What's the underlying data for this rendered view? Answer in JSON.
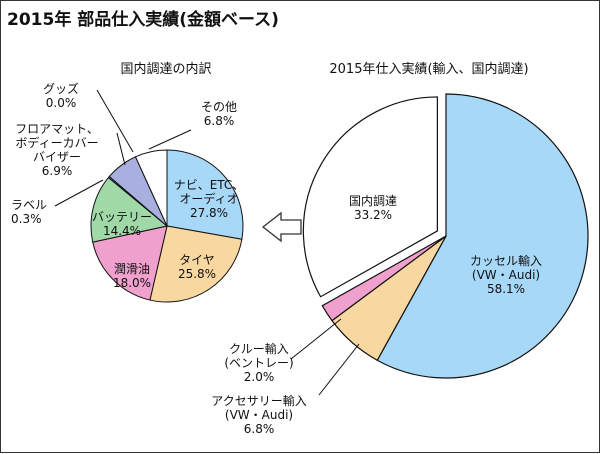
{
  "title": "2015年 部品仕入実績(金額ベース)",
  "colors": {
    "etc": "#a8d8f8",
    "tire": "#f8d8a0",
    "lube": "#f0a0cc",
    "battery": "#a0d8a8",
    "labels": "#a8b0e0",
    "floormat": "#202020",
    "accessory": "#f8d8a0",
    "crew": "#f0a0cc",
    "domestic": "#ffffff",
    "cassel": "#a8d8f8"
  },
  "chart_data": [
    {
      "type": "pie",
      "title": "国内調達の内訳",
      "slices": [
        {
          "label": "ナビ、ETC、\nオーディオ",
          "value": 27.8,
          "value_text": "27.8%",
          "color_key": "etc"
        },
        {
          "label": "タイヤ",
          "value": 25.8,
          "value_text": "25.8%",
          "color_key": "tire"
        },
        {
          "label": "潤滑油",
          "value": 18.0,
          "value_text": "18.0%",
          "color_key": "lube"
        },
        {
          "label": "バッテリー",
          "value": 14.4,
          "value_text": "14.4%",
          "color_key": "battery"
        },
        {
          "label": "ラベル",
          "value": 0.3,
          "value_text": "0.3%",
          "color_key": "labels"
        },
        {
          "label": "フロアマット、\nボディーカバー\nバイザー",
          "value": 6.9,
          "value_text": "6.9%",
          "color_key": "labels"
        },
        {
          "label": "グッズ",
          "value": 0.0,
          "value_text": "0.0%",
          "color_key": "floormat"
        },
        {
          "label": "その他",
          "value": 6.8,
          "value_text": "6.8%",
          "color_key": "domestic"
        }
      ]
    },
    {
      "type": "pie",
      "title": "2015年仕入実績(輸入、国内調達)",
      "slices": [
        {
          "label": "カッセル輸入\n(VW・Audi)",
          "value": 58.1,
          "value_text": "58.1%",
          "color_key": "cassel"
        },
        {
          "label": "アクセサリー輸入\n(VW・Audi)",
          "value": 6.8,
          "value_text": "6.8%",
          "color_key": "accessory"
        },
        {
          "label": "クルー輸入\n(ベントレー)",
          "value": 2.0,
          "value_text": "2.0%",
          "color_key": "crew"
        },
        {
          "label": "国内調達",
          "value": 33.2,
          "value_text": "33.2%",
          "color_key": "domestic",
          "exploded": true
        }
      ]
    }
  ]
}
